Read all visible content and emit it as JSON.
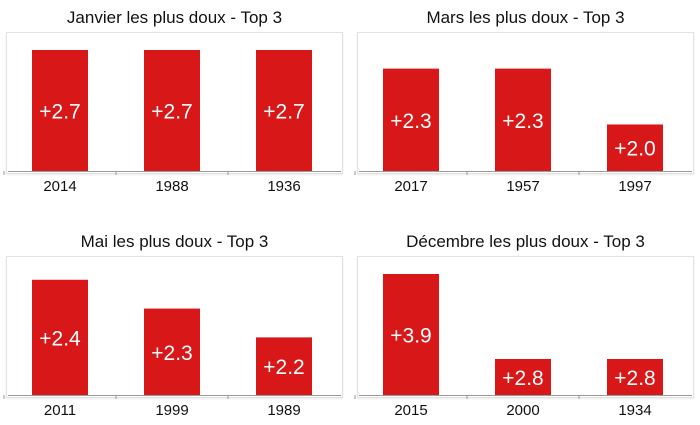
{
  "colors": {
    "bar": "#d71718",
    "axis": "#9a9a9a"
  },
  "chart_data": [
    {
      "type": "bar",
      "title": "Janvier les plus doux - Top 3",
      "categories": [
        "2014",
        "1988",
        "1936"
      ],
      "values": [
        2.7,
        2.7,
        2.7
      ],
      "labels": [
        "+2.7",
        "+2.7",
        "+2.7"
      ],
      "ylim": [
        0,
        2.7
      ]
    },
    {
      "type": "bar",
      "title": "Mars les plus doux - Top 3",
      "categories": [
        "2017",
        "1957",
        "1997"
      ],
      "values": [
        2.3,
        2.3,
        2.0
      ],
      "labels": [
        "+2.3",
        "+2.3",
        "+2.0"
      ],
      "ylim": [
        1.75,
        2.4
      ]
    },
    {
      "type": "bar",
      "title": "Mai les plus doux - Top 3",
      "categories": [
        "2011",
        "1999",
        "1989"
      ],
      "values": [
        2.4,
        2.3,
        2.2
      ],
      "labels": [
        "+2.4",
        "+2.3",
        "+2.2"
      ],
      "ylim": [
        2.0,
        2.42
      ]
    },
    {
      "type": "bar",
      "title": "Décembre les plus doux - Top 3",
      "categories": [
        "2015",
        "2000",
        "1934"
      ],
      "values": [
        3.9,
        2.8,
        2.8
      ],
      "labels": [
        "+3.9",
        "+2.8",
        "+2.8"
      ],
      "ylim": [
        2.66,
        3.9
      ]
    }
  ]
}
